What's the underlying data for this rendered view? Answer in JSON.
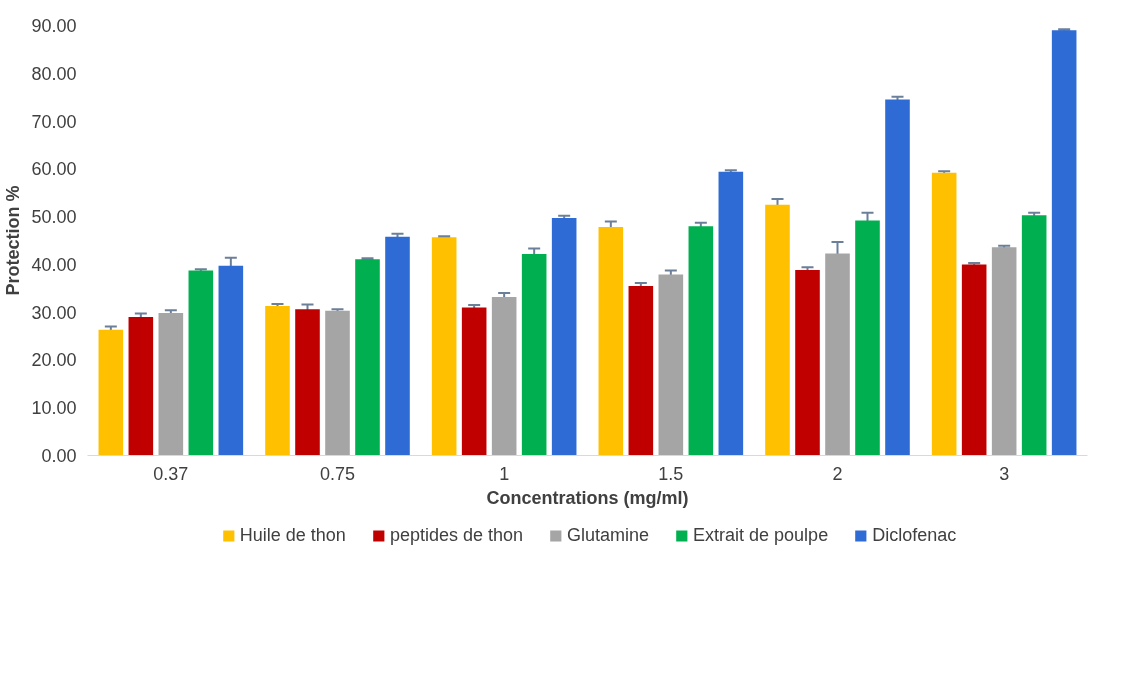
{
  "chart_data": {
    "type": "bar",
    "xlabel": "Concentrations (mg/ml)",
    "ylabel": "Protection %",
    "categories": [
      "0.37",
      "0.75",
      "1",
      "1.5",
      "2",
      "3"
    ],
    "series": [
      {
        "name": "Huile de thon",
        "color": "#ffc000",
        "values": [
          26.3,
          31.3,
          45.7,
          47.8,
          52.5,
          59.2
        ],
        "errors": [
          0.7,
          0.4,
          0.2,
          1.2,
          1.2,
          0.3
        ]
      },
      {
        "name": "peptides de thon",
        "color": "#c00000",
        "values": [
          29.0,
          30.6,
          31.0,
          35.5,
          38.8,
          40.0
        ],
        "errors": [
          0.7,
          1.0,
          0.5,
          0.6,
          0.6,
          0.3
        ]
      },
      {
        "name": "Glutamine",
        "color": "#a5a5a5",
        "values": [
          29.8,
          30.3,
          33.2,
          37.9,
          42.3,
          43.6
        ],
        "errors": [
          0.6,
          0.3,
          0.8,
          0.8,
          2.4,
          0.3
        ]
      },
      {
        "name": "Extrait de poulpe",
        "color": "#00b050",
        "values": [
          38.7,
          41.1,
          42.2,
          48.0,
          49.2,
          50.3
        ],
        "errors": [
          0.3,
          0.2,
          1.1,
          0.7,
          1.6,
          0.5
        ]
      },
      {
        "name": "Diclofenac",
        "color": "#2e6bd4",
        "values": [
          39.7,
          45.8,
          49.7,
          59.4,
          74.5,
          89.0
        ],
        "errors": [
          1.7,
          0.6,
          0.5,
          0.3,
          0.6,
          0.2
        ]
      }
    ],
    "ylim": [
      0,
      90
    ],
    "yticks": [
      {
        "value": 0,
        "label": "0.00"
      },
      {
        "value": 10,
        "label": "10.00"
      },
      {
        "value": 20,
        "label": "20.00"
      },
      {
        "value": 30,
        "label": "30.00"
      },
      {
        "value": 40,
        "label": "40.00"
      },
      {
        "value": 50,
        "label": "50.00"
      },
      {
        "value": 60,
        "label": "60.00"
      },
      {
        "value": 70,
        "label": "70.00"
      },
      {
        "value": 80,
        "label": "80.00"
      },
      {
        "value": 90,
        "label": "90.00"
      }
    ],
    "grid": false,
    "legend": "bottom"
  }
}
